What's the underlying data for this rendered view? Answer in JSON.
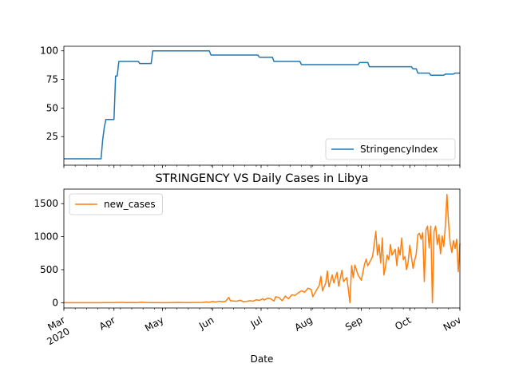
{
  "chart_data": [
    {
      "type": "line",
      "title": "",
      "xlabel": "",
      "ylabel": "",
      "ylim": [
        0,
        104
      ],
      "yticks": [
        25,
        50,
        75,
        100
      ],
      "x_range": [
        "2020-03-01",
        "2020-11-01"
      ],
      "legend_position": "lower right",
      "grid": false,
      "series": [
        {
          "name": "StringencyIndex",
          "color": "#1f77b4",
          "step_points": [
            [
              "2020-03-01",
              5.56
            ],
            [
              "2020-03-24",
              5.56
            ],
            [
              "2020-03-25",
              22
            ],
            [
              "2020-03-26",
              33
            ],
            [
              "2020-03-27",
              40
            ],
            [
              "2020-04-01",
              40
            ],
            [
              "2020-04-02",
              78
            ],
            [
              "2020-04-03",
              78
            ],
            [
              "2020-04-04",
              90.74
            ],
            [
              "2020-04-16",
              90.74
            ],
            [
              "2020-04-17",
              88.89
            ],
            [
              "2020-04-24",
              88.89
            ],
            [
              "2020-04-25",
              100
            ],
            [
              "2020-05-30",
              100
            ],
            [
              "2020-05-31",
              96.3
            ],
            [
              "2020-06-29",
              96.3
            ],
            [
              "2020-06-30",
              94.44
            ],
            [
              "2020-07-08",
              94.44
            ],
            [
              "2020-07-09",
              90.74
            ],
            [
              "2020-07-25",
              90.74
            ],
            [
              "2020-07-26",
              87.96
            ],
            [
              "2020-08-30",
              87.96
            ],
            [
              "2020-08-31",
              89.81
            ],
            [
              "2020-09-05",
              89.81
            ],
            [
              "2020-09-06",
              86.11
            ],
            [
              "2020-10-02",
              86.11
            ],
            [
              "2020-10-03",
              84.26
            ],
            [
              "2020-10-05",
              84.26
            ],
            [
              "2020-10-06",
              80.56
            ],
            [
              "2020-10-13",
              80.56
            ],
            [
              "2020-10-14",
              78.7
            ],
            [
              "2020-10-22",
              78.7
            ],
            [
              "2020-10-23",
              79.63
            ],
            [
              "2020-10-28",
              79.63
            ],
            [
              "2020-10-29",
              80.56
            ],
            [
              "2020-11-01",
              80.56
            ]
          ]
        }
      ]
    },
    {
      "type": "line",
      "title": "STRINGENCY VS Daily Cases in Libya",
      "xlabel": "Date",
      "ylabel": "",
      "ylim": [
        -80,
        1720
      ],
      "yticks": [
        0,
        500,
        1000,
        1500
      ],
      "x_range": [
        "2020-03-01",
        "2020-11-01"
      ],
      "x_ticks": [
        {
          "date": "2020-03-01",
          "label": "Mar",
          "sub": "2020"
        },
        {
          "date": "2020-04-01",
          "label": "Apr",
          "sub": ""
        },
        {
          "date": "2020-05-01",
          "label": "May",
          "sub": ""
        },
        {
          "date": "2020-06-01",
          "label": "Jun",
          "sub": ""
        },
        {
          "date": "2020-07-01",
          "label": "Jul",
          "sub": ""
        },
        {
          "date": "2020-08-01",
          "label": "Aug",
          "sub": ""
        },
        {
          "date": "2020-09-01",
          "label": "Sep",
          "sub": ""
        },
        {
          "date": "2020-10-01",
          "label": "Oct",
          "sub": ""
        },
        {
          "date": "2020-11-01",
          "label": "Nov",
          "sub": ""
        }
      ],
      "legend_position": "upper left",
      "grid": false,
      "series": [
        {
          "name": "new_cases",
          "color": "#ff7f0e",
          "points": [
            [
              "2020-03-01",
              0
            ],
            [
              "2020-03-24",
              0
            ],
            [
              "2020-03-25",
              1
            ],
            [
              "2020-03-28",
              2
            ],
            [
              "2020-04-01",
              1
            ],
            [
              "2020-04-03",
              5
            ],
            [
              "2020-04-06",
              4
            ],
            [
              "2020-04-09",
              2
            ],
            [
              "2020-04-12",
              3
            ],
            [
              "2020-04-15",
              1
            ],
            [
              "2020-04-18",
              8
            ],
            [
              "2020-04-21",
              3
            ],
            [
              "2020-04-24",
              1
            ],
            [
              "2020-04-28",
              2
            ],
            [
              "2020-05-01",
              0
            ],
            [
              "2020-05-06",
              1
            ],
            [
              "2020-05-11",
              4
            ],
            [
              "2020-05-16",
              2
            ],
            [
              "2020-05-21",
              3
            ],
            [
              "2020-05-26",
              5
            ],
            [
              "2020-05-28",
              12
            ],
            [
              "2020-05-30",
              8
            ],
            [
              "2020-06-01",
              18
            ],
            [
              "2020-06-03",
              10
            ],
            [
              "2020-06-05",
              22
            ],
            [
              "2020-06-07",
              15
            ],
            [
              "2020-06-09",
              20
            ],
            [
              "2020-06-11",
              80
            ],
            [
              "2020-06-12",
              30
            ],
            [
              "2020-06-14",
              25
            ],
            [
              "2020-06-16",
              22
            ],
            [
              "2020-06-18",
              38
            ],
            [
              "2020-06-20",
              15
            ],
            [
              "2020-06-22",
              20
            ],
            [
              "2020-06-24",
              30
            ],
            [
              "2020-06-26",
              22
            ],
            [
              "2020-06-28",
              45
            ],
            [
              "2020-06-30",
              35
            ],
            [
              "2020-07-02",
              60
            ],
            [
              "2020-07-03",
              40
            ],
            [
              "2020-07-05",
              70
            ],
            [
              "2020-07-07",
              60
            ],
            [
              "2020-07-09",
              25
            ],
            [
              "2020-07-10",
              90
            ],
            [
              "2020-07-12",
              80
            ],
            [
              "2020-07-14",
              30
            ],
            [
              "2020-07-16",
              100
            ],
            [
              "2020-07-18",
              60
            ],
            [
              "2020-07-20",
              120
            ],
            [
              "2020-07-22",
              110
            ],
            [
              "2020-07-24",
              150
            ],
            [
              "2020-07-26",
              180
            ],
            [
              "2020-07-28",
              160
            ],
            [
              "2020-07-30",
              220
            ],
            [
              "2020-08-01",
              200
            ],
            [
              "2020-08-02",
              90
            ],
            [
              "2020-08-04",
              180
            ],
            [
              "2020-08-06",
              260
            ],
            [
              "2020-08-07",
              400
            ],
            [
              "2020-08-08",
              180
            ],
            [
              "2020-08-10",
              300
            ],
            [
              "2020-08-11",
              480
            ],
            [
              "2020-08-12",
              240
            ],
            [
              "2020-08-14",
              420
            ],
            [
              "2020-08-15",
              300
            ],
            [
              "2020-08-17",
              460
            ],
            [
              "2020-08-18",
              250
            ],
            [
              "2020-08-20",
              490
            ],
            [
              "2020-08-21",
              320
            ],
            [
              "2020-08-23",
              380
            ],
            [
              "2020-08-24",
              200
            ],
            [
              "2020-08-25",
              0
            ],
            [
              "2020-08-26",
              560
            ],
            [
              "2020-08-27",
              380
            ],
            [
              "2020-08-28",
              570
            ],
            [
              "2020-08-30",
              420
            ],
            [
              "2020-09-01",
              340
            ],
            [
              "2020-09-03",
              580
            ],
            [
              "2020-09-04",
              660
            ],
            [
              "2020-09-05",
              560
            ],
            [
              "2020-09-07",
              650
            ],
            [
              "2020-09-08",
              700
            ],
            [
              "2020-09-10",
              1080
            ],
            [
              "2020-09-11",
              720
            ],
            [
              "2020-09-12",
              880
            ],
            [
              "2020-09-13",
              600
            ],
            [
              "2020-09-14",
              980
            ],
            [
              "2020-09-15",
              420
            ],
            [
              "2020-09-16",
              550
            ],
            [
              "2020-09-17",
              720
            ],
            [
              "2020-09-18",
              650
            ],
            [
              "2020-09-19",
              880
            ],
            [
              "2020-09-20",
              720
            ],
            [
              "2020-09-22",
              810
            ],
            [
              "2020-09-23",
              560
            ],
            [
              "2020-09-24",
              840
            ],
            [
              "2020-09-25",
              720
            ],
            [
              "2020-09-26",
              980
            ],
            [
              "2020-09-27",
              650
            ],
            [
              "2020-09-28",
              700
            ],
            [
              "2020-09-29",
              500
            ],
            [
              "2020-09-30",
              620
            ],
            [
              "2020-10-01",
              870
            ],
            [
              "2020-10-02",
              700
            ],
            [
              "2020-10-03",
              520
            ],
            [
              "2020-10-04",
              640
            ],
            [
              "2020-10-05",
              740
            ],
            [
              "2020-10-06",
              1030
            ],
            [
              "2020-10-07",
              1050
            ],
            [
              "2020-10-08",
              960
            ],
            [
              "2020-10-09",
              1060
            ],
            [
              "2020-10-10",
              320
            ],
            [
              "2020-10-11",
              1100
            ],
            [
              "2020-10-12",
              1160
            ],
            [
              "2020-10-13",
              830
            ],
            [
              "2020-10-14",
              1160
            ],
            [
              "2020-10-15",
              0
            ],
            [
              "2020-10-16",
              1080
            ],
            [
              "2020-10-17",
              1160
            ],
            [
              "2020-10-18",
              880
            ],
            [
              "2020-10-19",
              1030
            ],
            [
              "2020-10-20",
              740
            ],
            [
              "2020-10-21",
              1010
            ],
            [
              "2020-10-22",
              850
            ],
            [
              "2020-10-23",
              1160
            ],
            [
              "2020-10-24",
              1640
            ],
            [
              "2020-10-25",
              1200
            ],
            [
              "2020-10-26",
              900
            ],
            [
              "2020-10-27",
              760
            ],
            [
              "2020-10-28",
              940
            ],
            [
              "2020-10-29",
              820
            ],
            [
              "2020-10-30",
              960
            ],
            [
              "2020-10-31",
              470
            ],
            [
              "2020-11-01",
              900
            ]
          ]
        }
      ]
    }
  ]
}
